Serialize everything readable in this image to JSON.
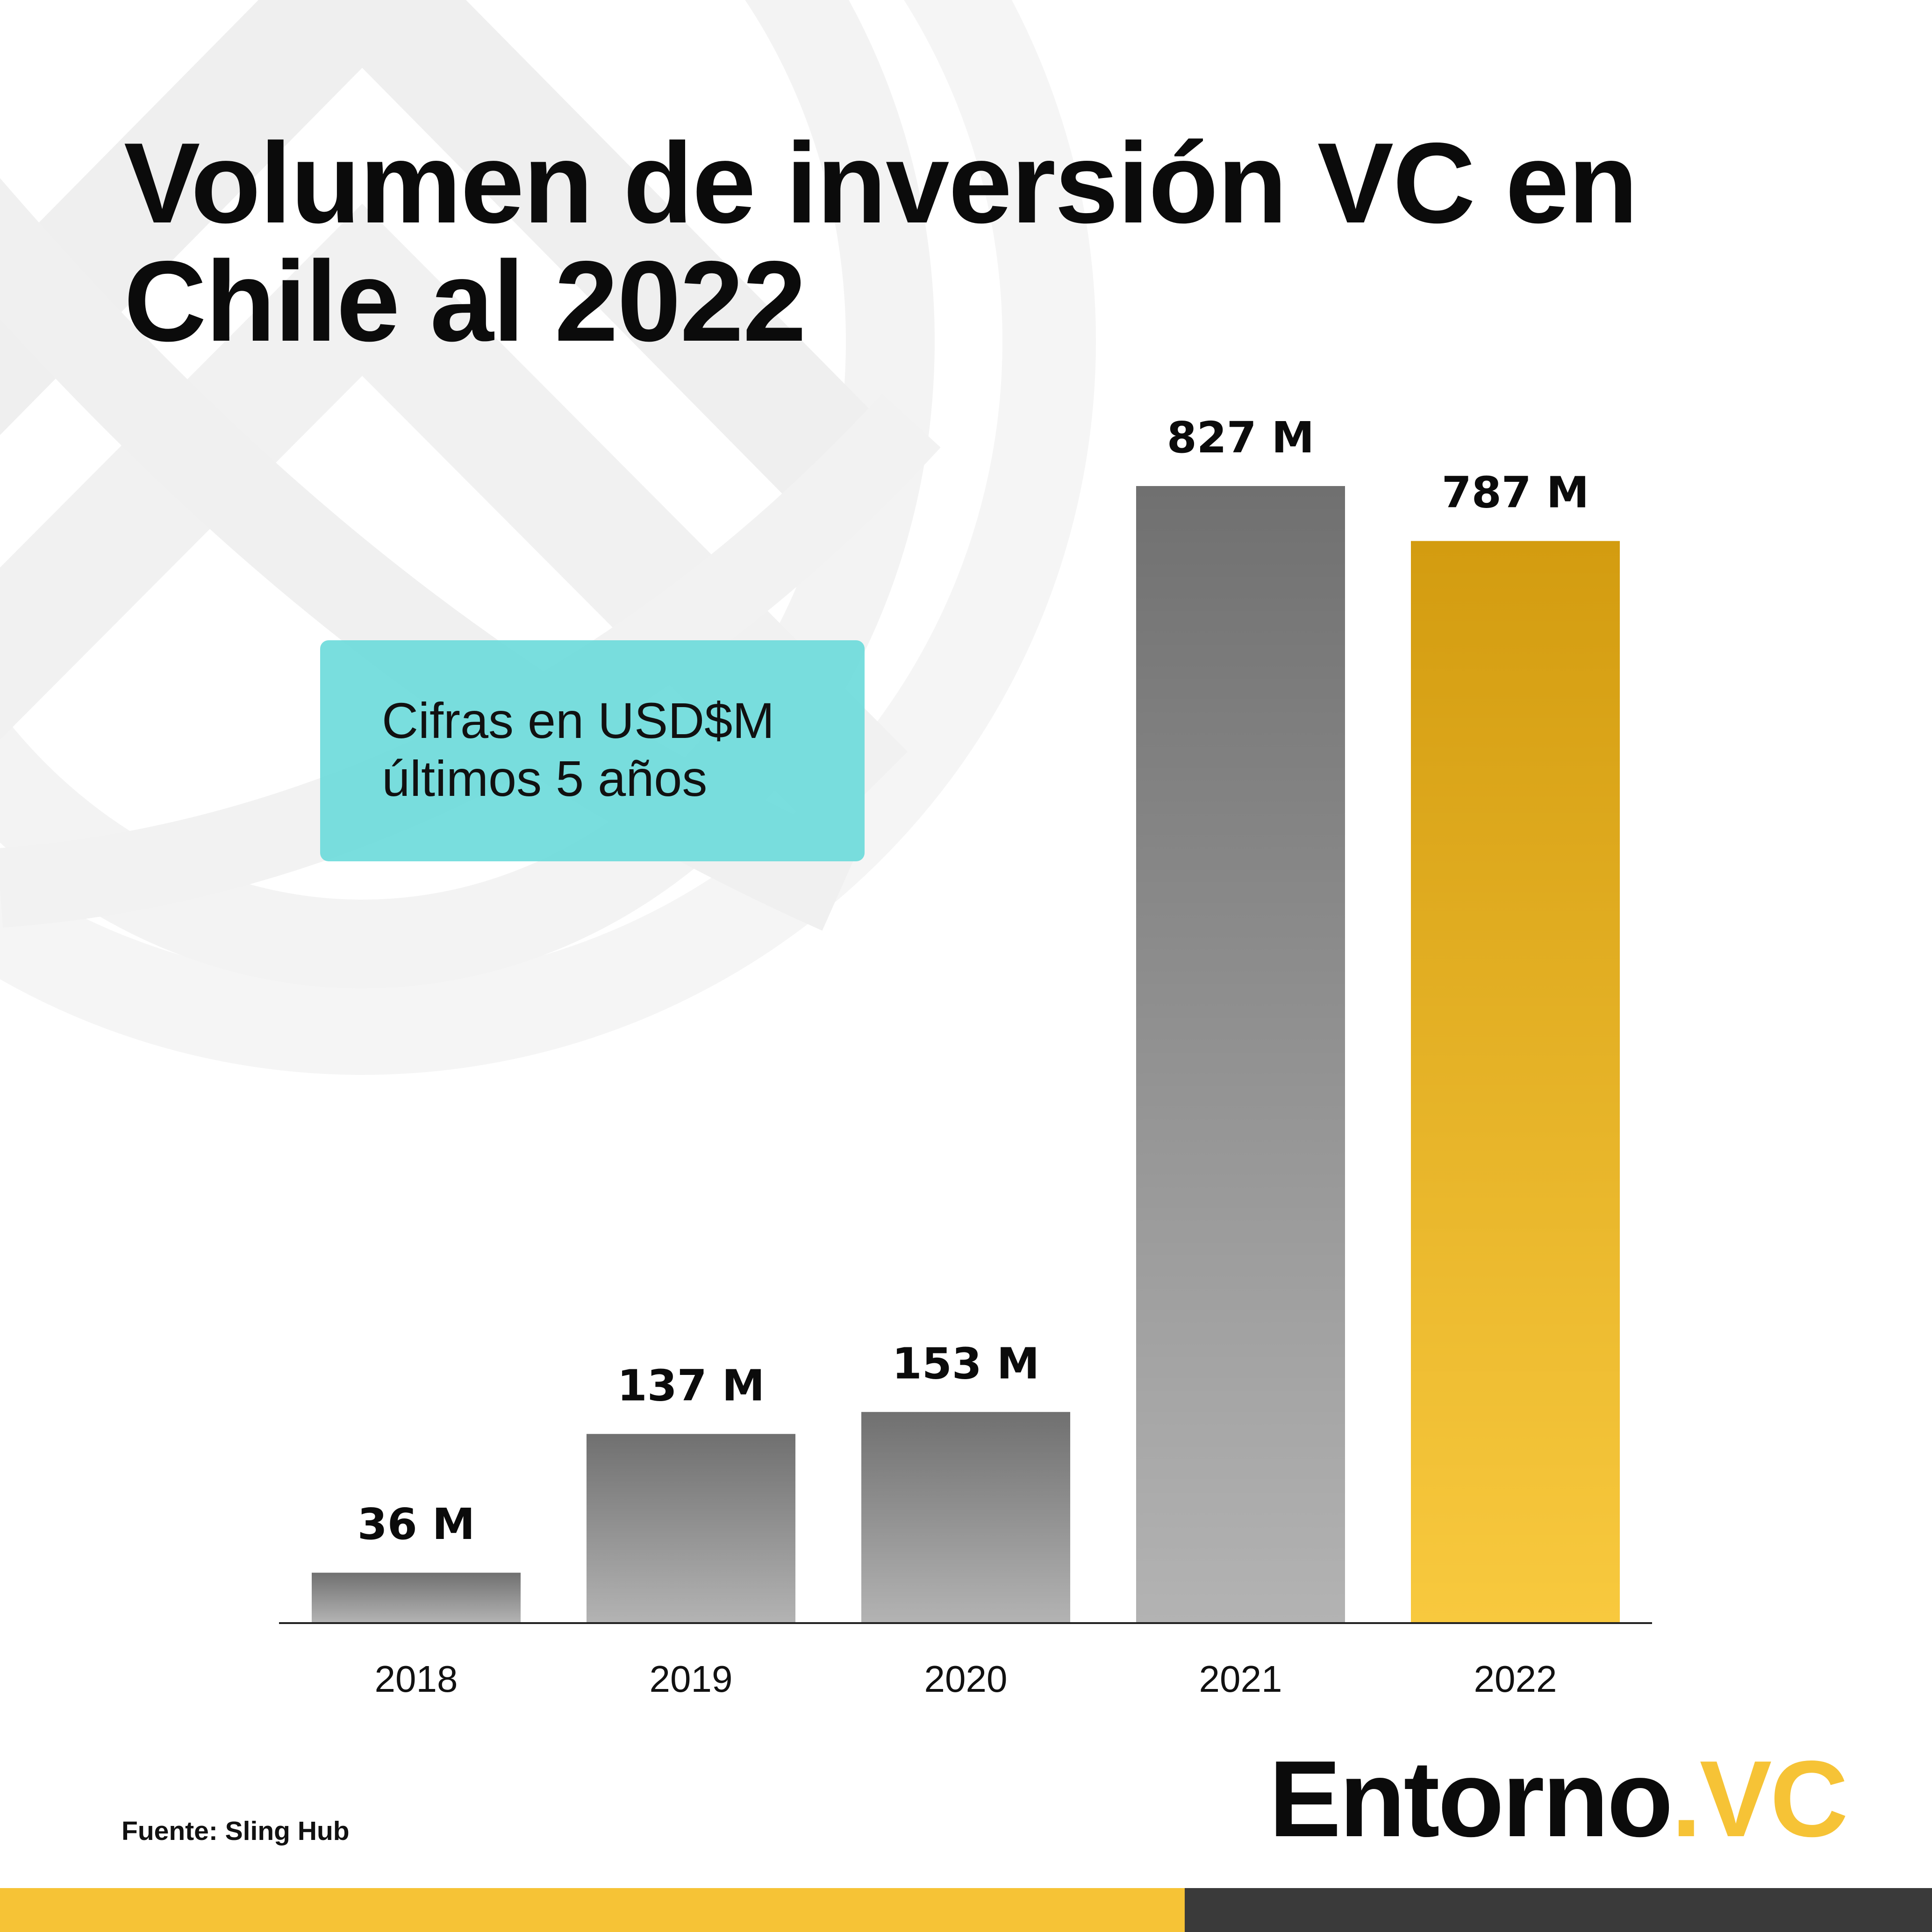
{
  "title": {
    "line1": "Volumen de inversión VC en",
    "line2": "Chile al 2022"
  },
  "note": {
    "line1": "Cifras en USD$M",
    "line2": "últimos 5 años"
  },
  "source": "Fuente: Sling Hub",
  "logo": {
    "main": "Entorno",
    "suffix": ".VC"
  },
  "colors": {
    "highlight": "#f6c336",
    "bar_gray": "#7a7a7a",
    "note_box": "#66dada",
    "text": "#0b0b0b"
  },
  "chart_data": {
    "type": "bar",
    "title": "Volumen de inversión VC en Chile al 2022",
    "categories": [
      "2018",
      "2019",
      "2020",
      "2021",
      "2022"
    ],
    "values": [
      36,
      137,
      153,
      827,
      787
    ],
    "labels": [
      "36 M",
      "137 M",
      "153 M",
      "827 M",
      "787 M"
    ],
    "highlight_category": "2022",
    "ylim": [
      0,
      827
    ],
    "grid": false,
    "legend": "none"
  }
}
